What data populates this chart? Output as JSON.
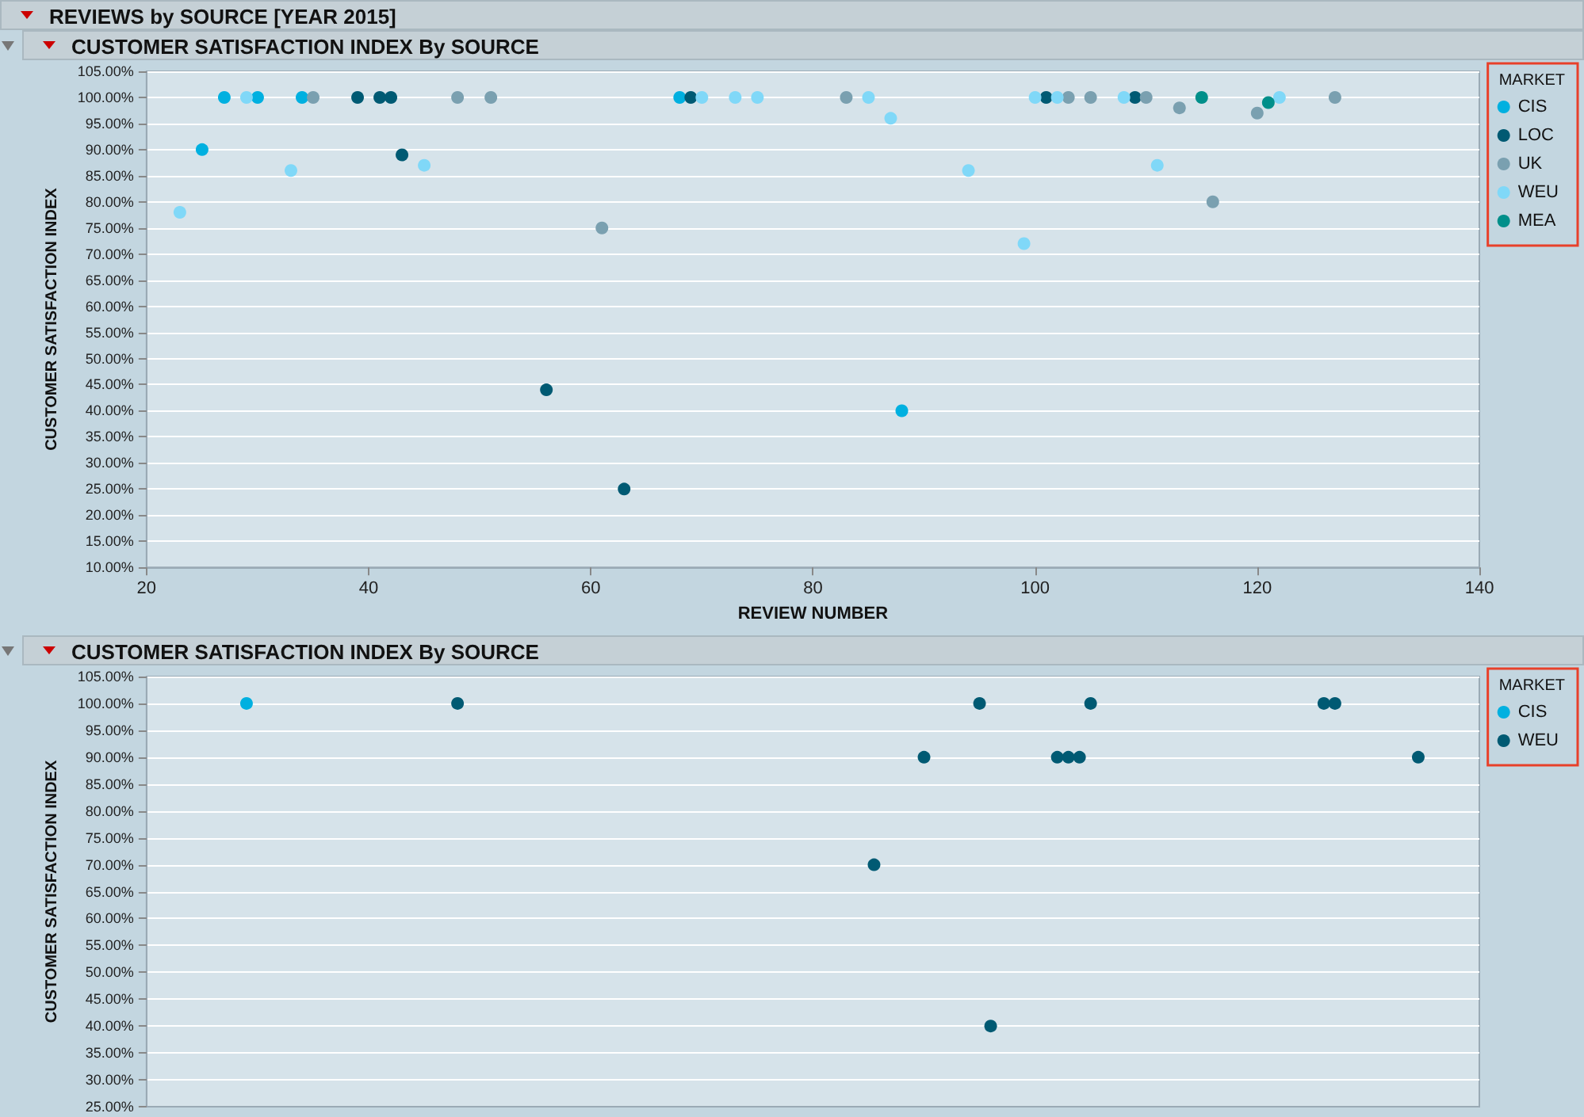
{
  "chart_data": [
    {
      "type": "scatter",
      "title": "REVIEWS by SOURCE [YEAR 2015]",
      "subtitle": "CUSTOMER SATISFACTION INDEX By SOURCE",
      "xlabel": "REVIEW NUMBER",
      "ylabel": "CUSTOMER SATISFACTION INDEX",
      "legend_title": "MARKET",
      "legend": "top right",
      "grid": "y",
      "marker": "circle",
      "xlim": [
        20,
        140
      ],
      "xticks": [
        20,
        40,
        60,
        80,
        100,
        120,
        140
      ],
      "ylim": [
        10,
        105
      ],
      "yticks": [
        {
          "value": 10,
          "label": "10.00%"
        },
        {
          "value": 15,
          "label": "15.00%"
        },
        {
          "value": 20,
          "label": "20.00%"
        },
        {
          "value": 25,
          "label": "25.00%"
        },
        {
          "value": 30,
          "label": "30.00%"
        },
        {
          "value": 35,
          "label": "35.00%"
        },
        {
          "value": 40,
          "label": "40.00%"
        },
        {
          "value": 45,
          "label": "45.00%"
        },
        {
          "value": 50,
          "label": "50.00%"
        },
        {
          "value": 55,
          "label": "55.00%"
        },
        {
          "value": 60,
          "label": "60.00%"
        },
        {
          "value": 65,
          "label": "65.00%"
        },
        {
          "value": 70,
          "label": "70.00%"
        },
        {
          "value": 75,
          "label": "75.00%"
        },
        {
          "value": 80,
          "label": "80.00%"
        },
        {
          "value": 85,
          "label": "85.00%"
        },
        {
          "value": 90,
          "label": "90.00%"
        },
        {
          "value": 95,
          "label": "95.00%"
        },
        {
          "value": 100,
          "label": "100.00%"
        },
        {
          "value": 105,
          "label": "105.00%"
        }
      ],
      "series": [
        {
          "name": "CIS",
          "color": "#00b0e0",
          "x": [
            25,
            27,
            30,
            34,
            68,
            88
          ],
          "values": [
            90,
            100,
            100,
            100,
            100,
            40
          ]
        },
        {
          "name": "LOC",
          "color": "#005a73",
          "x": [
            39,
            41,
            42,
            43,
            56,
            63,
            69,
            101,
            109
          ],
          "values": [
            100,
            100,
            100,
            89,
            44,
            25,
            100,
            100,
            100
          ]
        },
        {
          "name": "UK",
          "color": "#7aa0b0",
          "x": [
            35,
            48,
            51,
            61,
            83,
            103,
            105,
            110,
            113,
            116,
            120,
            127
          ],
          "values": [
            100,
            100,
            100,
            75,
            100,
            100,
            100,
            100,
            98,
            80,
            97,
            100
          ]
        },
        {
          "name": "WEU",
          "color": "#80d8f8",
          "x": [
            23,
            29,
            33,
            45,
            70,
            73,
            75,
            85,
            87,
            94,
            99,
            100,
            102,
            108,
            111,
            122
          ],
          "values": [
            78,
            100,
            86,
            87,
            100,
            100,
            100,
            100,
            96,
            86,
            72,
            100,
            100,
            100,
            87,
            100
          ]
        },
        {
          "name": "MEA",
          "color": "#008f8a",
          "x": [
            115,
            121
          ],
          "values": [
            100,
            99
          ]
        }
      ]
    },
    {
      "type": "scatter",
      "title": "CUSTOMER SATISFACTION INDEX By SOURCE",
      "ylabel": "CUSTOMER SATISFACTION INDEX",
      "legend_title": "MARKET",
      "legend": "top right",
      "grid": "y",
      "marker": "circle",
      "tick_labels": "y",
      "xlim": [
        20,
        140
      ],
      "ylim": [
        25,
        105
      ],
      "yticks": [
        {
          "value": 25,
          "label": "25.00%"
        },
        {
          "value": 30,
          "label": "30.00%"
        },
        {
          "value": 35,
          "label": "35.00%"
        },
        {
          "value": 40,
          "label": "40.00%"
        },
        {
          "value": 45,
          "label": "45.00%"
        },
        {
          "value": 50,
          "label": "50.00%"
        },
        {
          "value": 55,
          "label": "55.00%"
        },
        {
          "value": 60,
          "label": "60.00%"
        },
        {
          "value": 65,
          "label": "65.00%"
        },
        {
          "value": 70,
          "label": "70.00%"
        },
        {
          "value": 75,
          "label": "75.00%"
        },
        {
          "value": 80,
          "label": "80.00%"
        },
        {
          "value": 85,
          "label": "85.00%"
        },
        {
          "value": 90,
          "label": "90.00%"
        },
        {
          "value": 95,
          "label": "95.00%"
        },
        {
          "value": 100,
          "label": "100.00%"
        },
        {
          "value": 105,
          "label": "105.00%"
        }
      ],
      "series": [
        {
          "name": "CIS",
          "color": "#00b0e0",
          "x": [
            29
          ],
          "values": [
            100
          ]
        },
        {
          "name": "WEU",
          "color": "#005a73",
          "x": [
            48,
            85.5,
            90,
            95,
            96,
            102,
            103,
            104,
            105,
            126,
            127,
            134.5
          ],
          "values": [
            100,
            70,
            90,
            100,
            40,
            90,
            90,
            90,
            100,
            100,
            100,
            90
          ]
        }
      ]
    }
  ]
}
